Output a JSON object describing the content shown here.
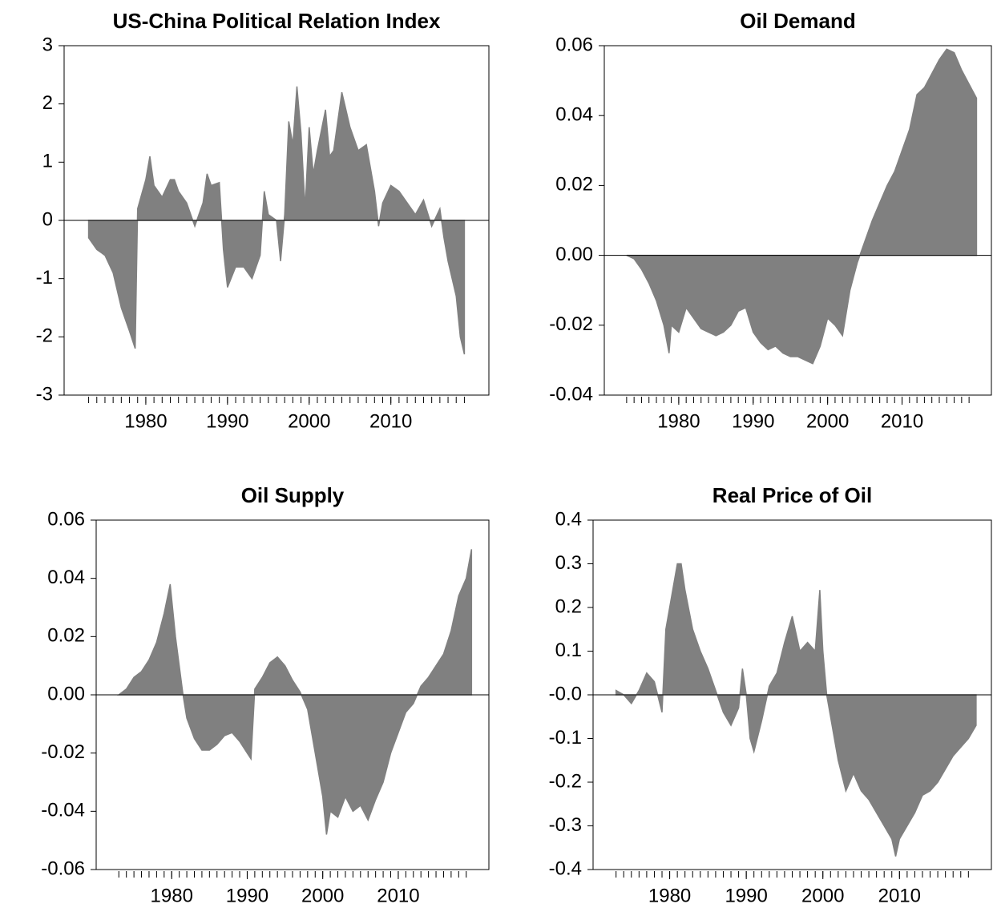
{
  "chart_data": [
    {
      "type": "area",
      "title": "US-China Political Relation Index",
      "color": "#808080",
      "x": [
        1973,
        1974,
        1975,
        1976,
        1977,
        1978,
        1978.7,
        1979,
        1980,
        1980.5,
        1981,
        1982,
        1983,
        1983.5,
        1984,
        1985,
        1986,
        1987,
        1987.5,
        1988,
        1989,
        1989.5,
        1990,
        1991,
        1992,
        1993,
        1994,
        1994.5,
        1995,
        1996,
        1996.5,
        1997,
        1997.5,
        1998,
        1998.5,
        1999,
        1999.5,
        2000,
        2000.5,
        2001,
        2002,
        2002.5,
        2003,
        2004,
        2005,
        2006,
        2007,
        2008,
        2008.5,
        2009,
        2010,
        2011,
        2012,
        2013,
        2014,
        2015,
        2016,
        2016.5,
        2017,
        2018,
        2018.5,
        2019
      ],
      "values": [
        -0.3,
        -0.5,
        -0.6,
        -0.9,
        -1.5,
        -1.9,
        -2.2,
        0.2,
        0.7,
        1.1,
        0.6,
        0.4,
        0.7,
        0.7,
        0.5,
        0.3,
        -0.1,
        0.3,
        0.8,
        0.6,
        0.65,
        -0.5,
        -1.15,
        -0.8,
        -0.8,
        -1.0,
        -0.6,
        0.5,
        0.1,
        0.0,
        -0.7,
        0.1,
        1.7,
        1.3,
        2.3,
        1.5,
        0.2,
        1.6,
        0.8,
        1.2,
        1.9,
        1.1,
        1.2,
        2.2,
        1.6,
        1.2,
        1.3,
        0.5,
        -0.1,
        0.3,
        0.6,
        0.5,
        0.3,
        0.1,
        0.35,
        -0.1,
        0.2,
        -0.3,
        -0.7,
        -1.3,
        -2.0,
        -2.3
      ],
      "xlim": [
        1970,
        2022
      ],
      "xticks": [
        1980,
        1990,
        2000,
        2010
      ],
      "minor_xticks": [
        1973,
        1974,
        1975,
        1976,
        1977,
        1978,
        1979,
        1980,
        1981,
        1982,
        1983,
        1984,
        1985,
        1986,
        1987,
        1988,
        1989,
        1990,
        1991,
        1992,
        1993,
        1994,
        1995,
        1996,
        1997,
        1998,
        1999,
        2000,
        2001,
        2002,
        2003,
        2004,
        2005,
        2006,
        2007,
        2008,
        2009,
        2010,
        2011,
        2012,
        2013,
        2014,
        2015,
        2016,
        2017,
        2018,
        2019
      ],
      "ylim": [
        -3,
        3
      ],
      "yticks": [
        -3,
        -2,
        -1,
        0,
        1,
        2,
        3
      ]
    },
    {
      "type": "area",
      "title": "Oil Demand",
      "color": "#808080",
      "x": [
        1973,
        1974,
        1975,
        1976,
        1977,
        1978,
        1978.7,
        1979,
        1980,
        1981,
        1982,
        1983,
        1984,
        1985,
        1986,
        1987,
        1988,
        1989,
        1990,
        1991,
        1992,
        1993,
        1994,
        1995,
        1996,
        1997,
        1998,
        1999,
        2000,
        2001,
        2002,
        2003,
        2004,
        2005,
        2006,
        2007,
        2008,
        2009,
        2010,
        2011,
        2012,
        2013,
        2014,
        2015,
        2016,
        2017,
        2018,
        2019,
        2020
      ],
      "values": [
        0,
        -0.001,
        -0.004,
        -0.008,
        -0.013,
        -0.02,
        -0.028,
        -0.02,
        -0.022,
        -0.015,
        -0.018,
        -0.021,
        -0.022,
        -0.023,
        -0.022,
        -0.02,
        -0.016,
        -0.015,
        -0.022,
        -0.025,
        -0.027,
        -0.026,
        -0.028,
        -0.029,
        -0.029,
        -0.03,
        -0.031,
        -0.026,
        -0.018,
        -0.02,
        -0.023,
        -0.01,
        -0.002,
        0.004,
        0.01,
        0.015,
        0.02,
        0.024,
        0.03,
        0.036,
        0.046,
        0.048,
        0.052,
        0.056,
        0.059,
        0.058,
        0.053,
        0.049,
        0.045
      ],
      "xlim": [
        1970,
        2022
      ],
      "xticks": [
        1980,
        1990,
        2000,
        2010
      ],
      "minor_xticks": [
        1973,
        1974,
        1975,
        1976,
        1977,
        1978,
        1979,
        1980,
        1981,
        1982,
        1983,
        1984,
        1985,
        1986,
        1987,
        1988,
        1989,
        1990,
        1991,
        1992,
        1993,
        1994,
        1995,
        1996,
        1997,
        1998,
        1999,
        2000,
        2001,
        2002,
        2003,
        2004,
        2005,
        2006,
        2007,
        2008,
        2009,
        2010,
        2011,
        2012,
        2013,
        2014,
        2015,
        2016,
        2017,
        2018,
        2019
      ],
      "ylim": [
        -0.04,
        0.06
      ],
      "yticks": [
        -0.04,
        -0.02,
        {
          "value": 0,
          "label": "0.00"
        },
        0.02,
        0.04,
        0.06
      ]
    },
    {
      "type": "area",
      "title": "Oil Supply",
      "color": "#808080",
      "x": [
        1973,
        1974,
        1975,
        1976,
        1977,
        1978,
        1979,
        1979.8,
        1980.5,
        1981,
        1981.5,
        1982,
        1983,
        1984,
        1985,
        1986,
        1987,
        1988,
        1989,
        1990,
        1990.5,
        1991,
        1992,
        1993,
        1994,
        1995,
        1996,
        1997,
        1998,
        1999,
        2000,
        2000.5,
        2001,
        2002,
        2003,
        2004,
        2005,
        2006,
        2007,
        2008,
        2009,
        2010,
        2011,
        2012,
        2013,
        2014,
        2015,
        2016,
        2017,
        2018,
        2019,
        2019.7
      ],
      "values": [
        0,
        0.002,
        0.006,
        0.008,
        0.012,
        0.018,
        0.028,
        0.038,
        0.02,
        0.01,
        0,
        -0.008,
        -0.015,
        -0.019,
        -0.019,
        -0.017,
        -0.014,
        -0.013,
        -0.016,
        -0.02,
        -0.022,
        0.002,
        0.006,
        0.011,
        0.013,
        0.01,
        0.005,
        0.001,
        -0.005,
        -0.02,
        -0.035,
        -0.048,
        -0.04,
        -0.042,
        -0.035,
        -0.04,
        -0.038,
        -0.043,
        -0.036,
        -0.03,
        -0.02,
        -0.013,
        -0.006,
        -0.003,
        0.003,
        0.006,
        0.01,
        0.014,
        0.022,
        0.034,
        0.04,
        0.05
      ],
      "xlim": [
        1970,
        2022
      ],
      "xticks": [
        1980,
        1990,
        2000,
        2010
      ],
      "minor_xticks": [
        1973,
        1974,
        1975,
        1976,
        1977,
        1978,
        1979,
        1980,
        1981,
        1982,
        1983,
        1984,
        1985,
        1986,
        1987,
        1988,
        1989,
        1990,
        1991,
        1992,
        1993,
        1994,
        1995,
        1996,
        1997,
        1998,
        1999,
        2000,
        2001,
        2002,
        2003,
        2004,
        2005,
        2006,
        2007,
        2008,
        2009,
        2010,
        2011,
        2012,
        2013,
        2014,
        2015,
        2016,
        2017,
        2018,
        2019
      ],
      "ylim": [
        -0.06,
        0.06
      ],
      "yticks": [
        -0.06,
        -0.04,
        -0.02,
        {
          "value": 0,
          "label": "0.00"
        },
        0.02,
        0.04,
        0.06
      ]
    },
    {
      "type": "area",
      "title": "Real Price of Oil",
      "color": "#808080",
      "x": [
        1973,
        1974,
        1975,
        1976,
        1977,
        1978,
        1979,
        1979.5,
        1980,
        1981,
        1981.5,
        1982,
        1983,
        1984,
        1985,
        1986,
        1987,
        1988,
        1989,
        1989.5,
        1990,
        1990.5,
        1991,
        1992,
        1993,
        1994,
        1995,
        1996,
        1997,
        1998,
        1999,
        1999.6,
        2000,
        2000.5,
        2001,
        2002,
        2003,
        2004,
        2005,
        2006,
        2007,
        2008,
        2009,
        2009.5,
        2010,
        2011,
        2012,
        2013,
        2014,
        2015,
        2016,
        2017,
        2018,
        2019,
        2020
      ],
      "values": [
        0.01,
        0.0,
        -0.02,
        0.01,
        0.05,
        0.03,
        -0.04,
        0.15,
        0.2,
        0.3,
        0.3,
        0.24,
        0.15,
        0.1,
        0.06,
        0.01,
        -0.04,
        -0.07,
        -0.03,
        0.06,
        0.0,
        -0.1,
        -0.13,
        -0.06,
        0.02,
        0.05,
        0.12,
        0.18,
        0.1,
        0.12,
        0.1,
        0.24,
        0.1,
        0.0,
        -0.05,
        -0.15,
        -0.22,
        -0.18,
        -0.22,
        -0.24,
        -0.27,
        -0.3,
        -0.33,
        -0.37,
        -0.33,
        -0.3,
        -0.27,
        -0.23,
        -0.22,
        -0.2,
        -0.17,
        -0.14,
        -0.12,
        -0.1,
        -0.07
      ],
      "xlim": [
        1970,
        2022
      ],
      "xticks": [
        1980,
        1990,
        2000,
        2010
      ],
      "minor_xticks": [
        1973,
        1974,
        1975,
        1976,
        1977,
        1978,
        1979,
        1980,
        1981,
        1982,
        1983,
        1984,
        1985,
        1986,
        1987,
        1988,
        1989,
        1990,
        1991,
        1992,
        1993,
        1994,
        1995,
        1996,
        1997,
        1998,
        1999,
        2000,
        2001,
        2002,
        2003,
        2004,
        2005,
        2006,
        2007,
        2008,
        2009,
        2010,
        2011,
        2012,
        2013,
        2014,
        2015,
        2016,
        2017,
        2018,
        2019
      ],
      "ylim": [
        -0.4,
        0.4
      ],
      "yticks": [
        -0.4,
        -0.3,
        -0.2,
        -0.1,
        {
          "value": 0,
          "label": "-0.0"
        },
        0.1,
        0.2,
        0.3,
        0.4
      ]
    }
  ]
}
